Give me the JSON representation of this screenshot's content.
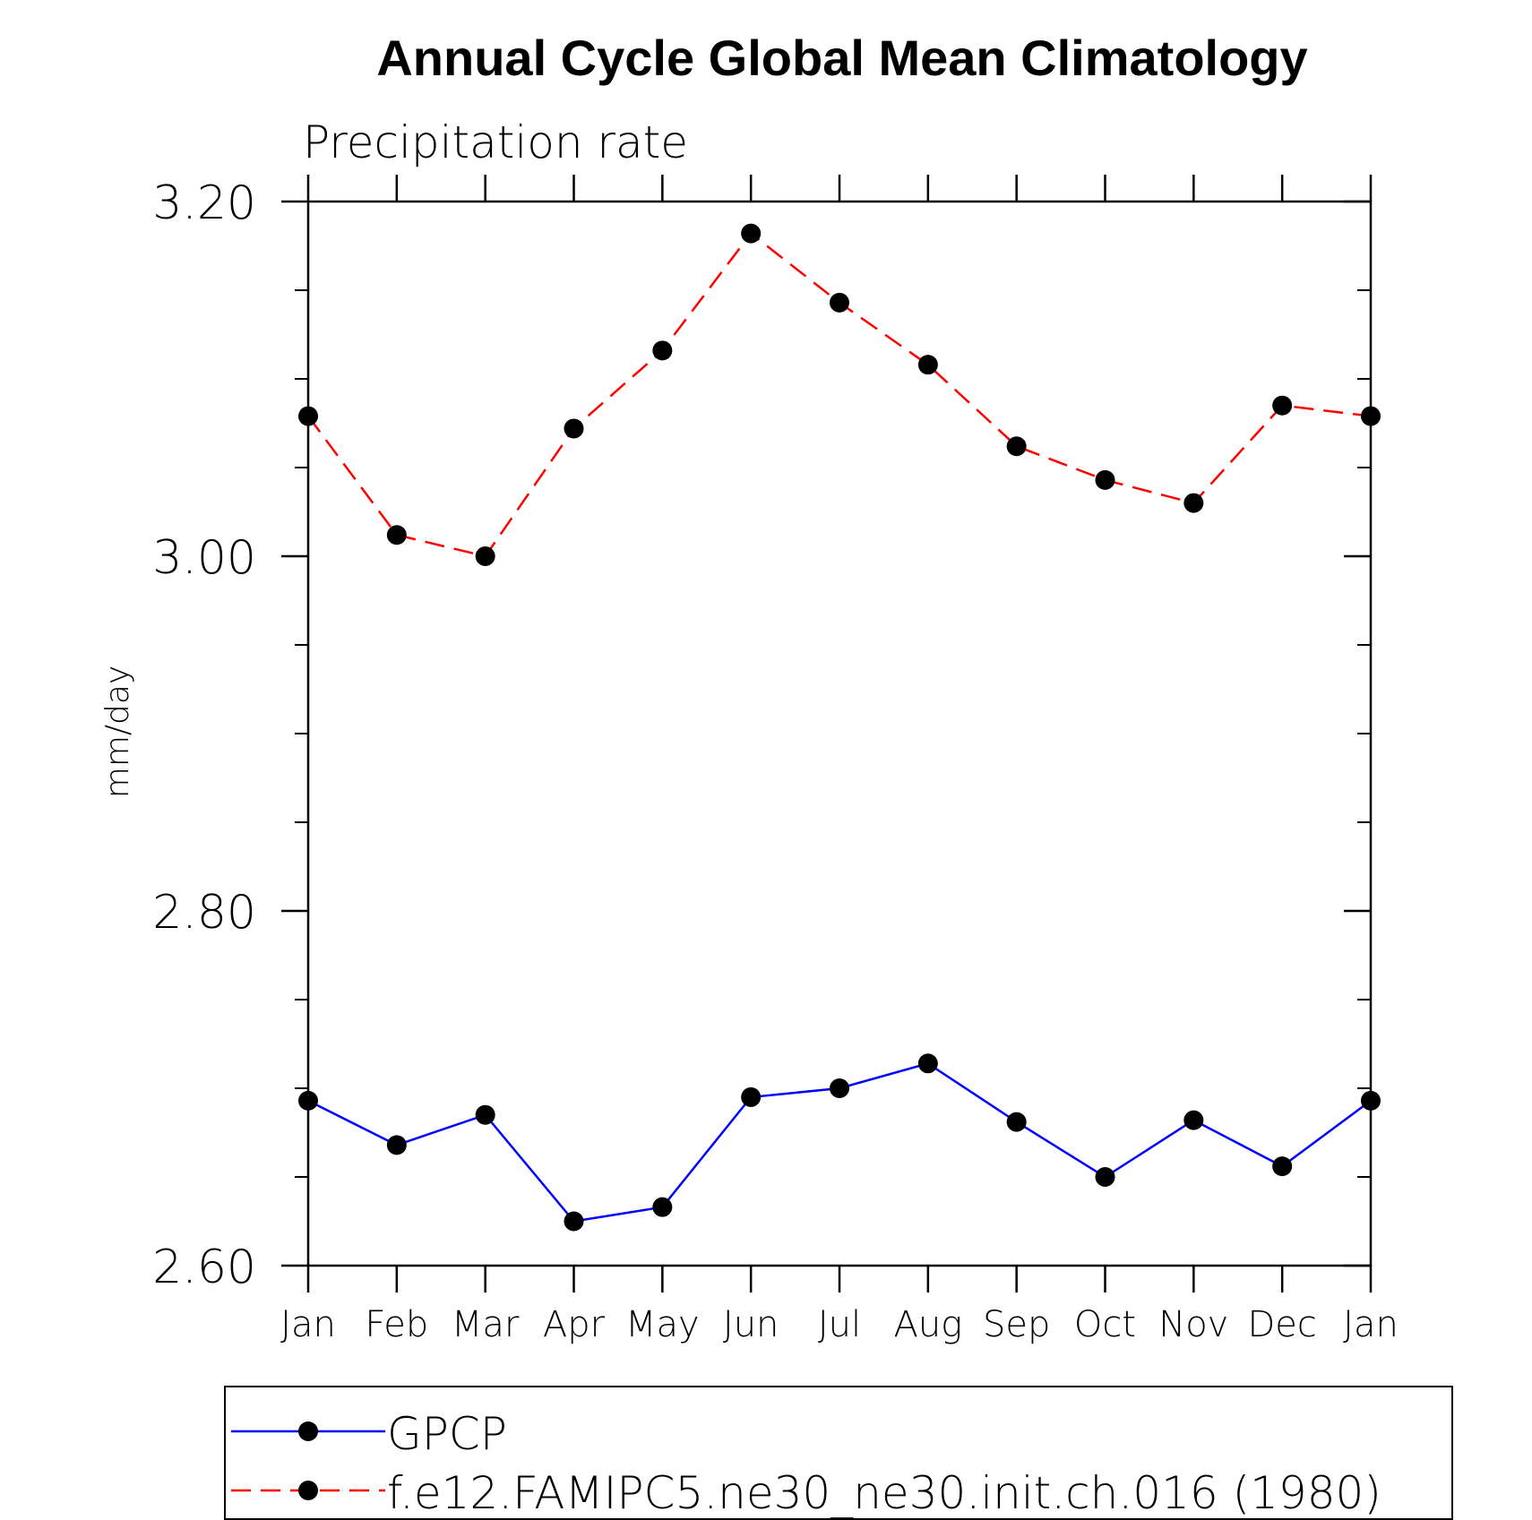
{
  "chart_data": {
    "type": "line",
    "title": "Annual Cycle Global Mean Climatology",
    "subtitle": "Precipitation rate",
    "xlabel": "",
    "ylabel": "mm/day",
    "categories": [
      "Jan",
      "Feb",
      "Mar",
      "Apr",
      "May",
      "Jun",
      "Jul",
      "Aug",
      "Sep",
      "Oct",
      "Nov",
      "Dec",
      "Jan"
    ],
    "ylim": [
      2.6,
      3.2
    ],
    "yticks": [
      2.6,
      2.8,
      3.0,
      3.2
    ],
    "ytick_labels": [
      "2.60",
      "2.80",
      "3.00",
      "3.20"
    ],
    "y_minor_step": 0.05,
    "grid": false,
    "legend_position": "bottom",
    "series": [
      {
        "name": "GPCP",
        "color": "#0000ff",
        "line_style": "solid",
        "marker": "filled-circle",
        "values": [
          2.693,
          2.668,
          2.685,
          2.625,
          2.633,
          2.695,
          2.7,
          2.714,
          2.681,
          2.65,
          2.682,
          2.656,
          2.693
        ]
      },
      {
        "name": "f.e12.FAMIPC5.ne30_ne30.init.ch.016 (1980)",
        "color": "#ff0000",
        "line_style": "dashed",
        "marker": "filled-circle",
        "values": [
          3.079,
          3.012,
          3.0,
          3.072,
          3.116,
          3.182,
          3.143,
          3.108,
          3.062,
          3.043,
          3.03,
          3.085,
          3.079
        ]
      }
    ]
  }
}
